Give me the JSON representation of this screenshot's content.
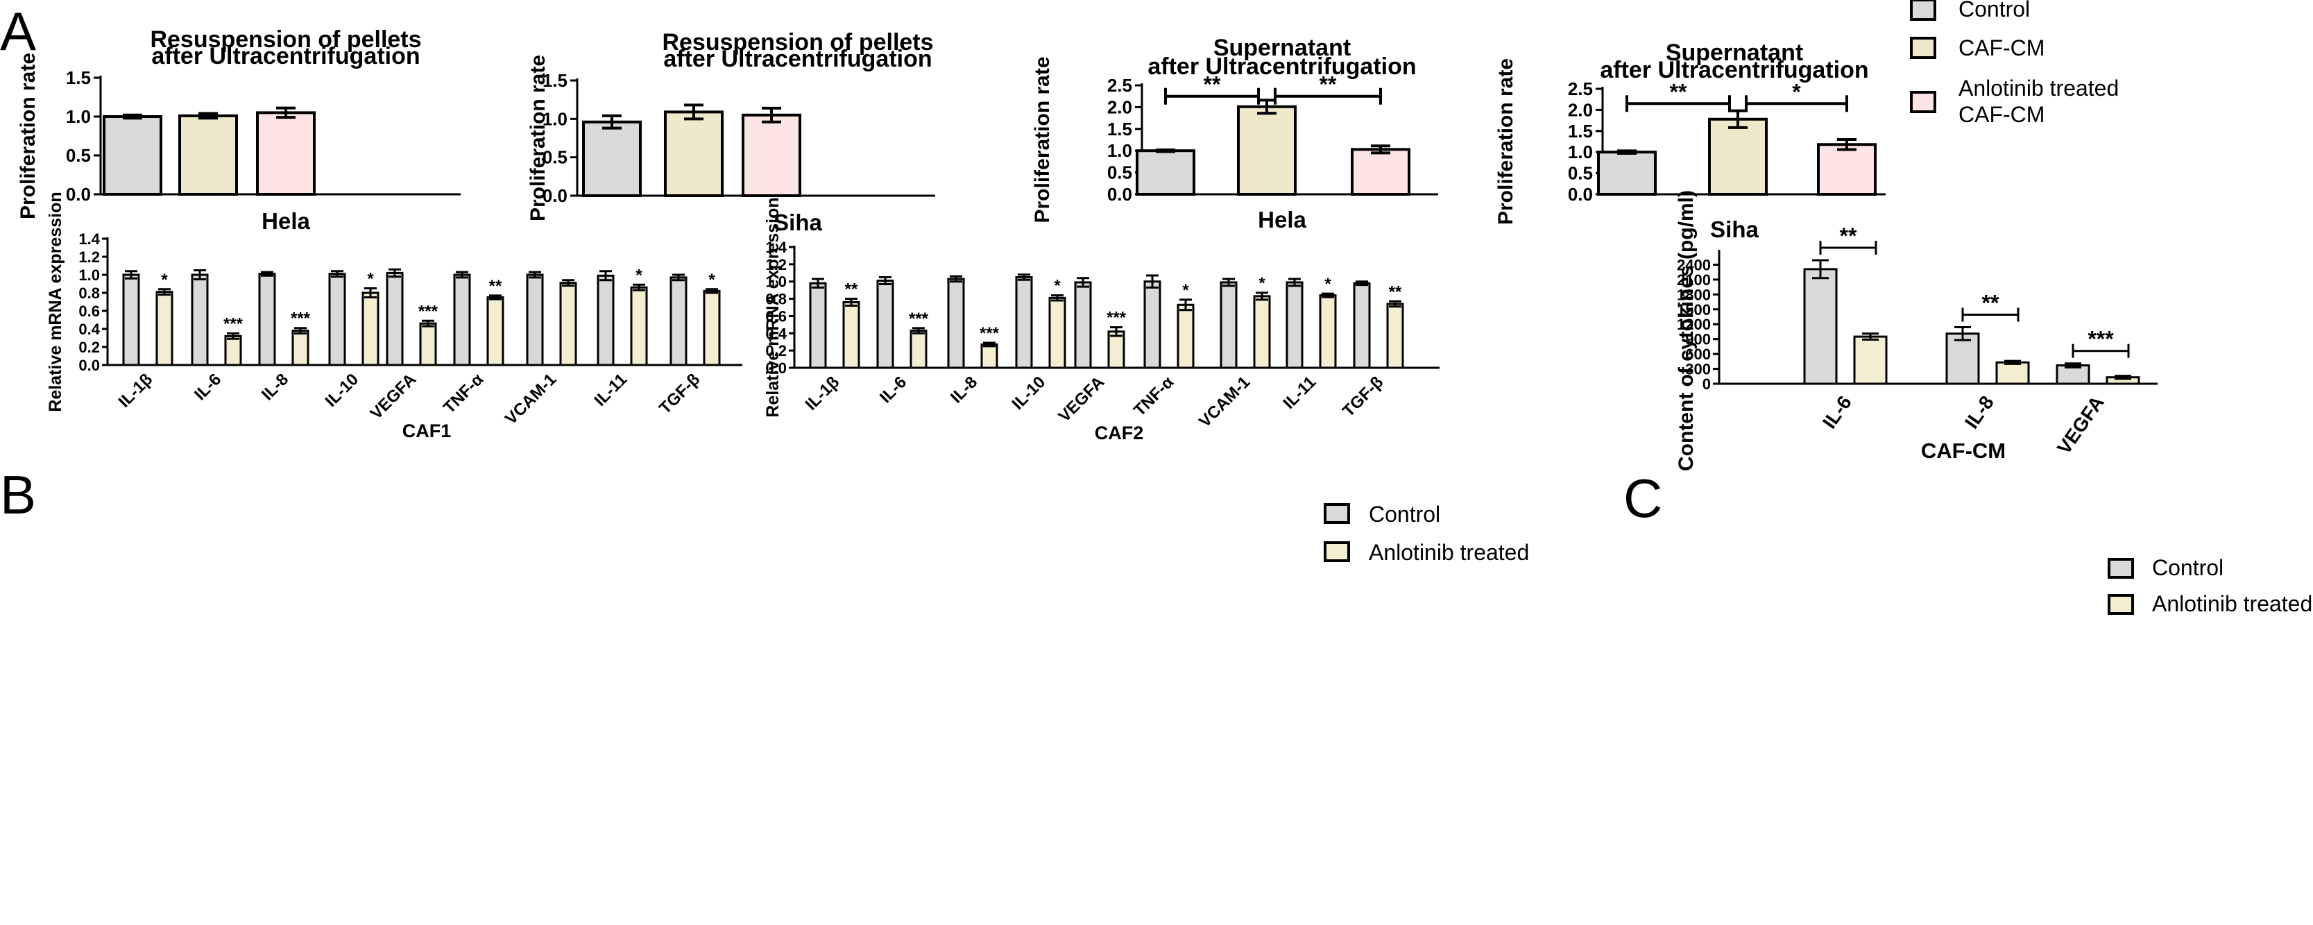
{
  "colors": {
    "control": "#d9d9d9",
    "caf_cm": "#efe9cc",
    "anlotinib_caf": "#fde4e4",
    "anlotinib": "#f3eed0",
    "stroke": "#000000"
  },
  "panel_labels": {
    "a": "A",
    "b": "B",
    "c": "C"
  },
  "legend_top": {
    "items": [
      {
        "label": "Control",
        "color": "#d9d9d9"
      },
      {
        "label": "CAF-CM",
        "color": "#efe9cc"
      },
      {
        "label": "Anlotinib treated",
        "label2": "CAF-CM",
        "color": "#fde4e4"
      }
    ]
  },
  "legend_b": {
    "items": [
      {
        "label": "Control",
        "color": "#d9d9d9"
      },
      {
        "label": "Anlotinib treated",
        "color": "#f3eed0"
      }
    ]
  },
  "legend_c": {
    "items": [
      {
        "label": "Control",
        "color": "#d9d9d9"
      },
      {
        "label": "Anlotinib treated",
        "color": "#f3eed0"
      }
    ]
  },
  "chart_data": [
    {
      "id": "A1",
      "type": "bar",
      "title": [
        "Resuspension of pellets",
        "after Ultracentrifugation"
      ],
      "ylabel": "Proliferation rate",
      "xlabel": "Hela",
      "categories": [
        "Control",
        "CAF-CM",
        "Anlotinib treated CAF-CM"
      ],
      "values": [
        1.0,
        1.01,
        1.05
      ],
      "errors": [
        0.02,
        0.03,
        0.06
      ],
      "ylim": [
        0,
        1.5
      ],
      "yticks": [
        0.0,
        0.5,
        1.0,
        1.5
      ],
      "ytick_labels": [
        "0.0",
        "0.5",
        "1.0",
        "1.5"
      ],
      "significance": []
    },
    {
      "id": "A2",
      "type": "bar",
      "title": [
        "Resuspension of pellets",
        "after Ultracentrifugation"
      ],
      "ylabel": "Proliferation rate",
      "xlabel": "Siha",
      "categories": [
        "Control",
        "CAF-CM",
        "Anlotinib treated CAF-CM"
      ],
      "values": [
        0.96,
        1.09,
        1.05
      ],
      "errors": [
        0.08,
        0.09,
        0.09
      ],
      "ylim": [
        0,
        1.5
      ],
      "yticks": [
        0.0,
        0.5,
        1.0,
        1.5
      ],
      "ytick_labels": [
        "0.0",
        "0.5",
        "1.0",
        "1.5"
      ],
      "significance": []
    },
    {
      "id": "A3",
      "type": "bar",
      "title": [
        "Supernatant",
        "after Ultracentrifugation"
      ],
      "ylabel": "Proliferation rate",
      "xlabel": "Hela",
      "categories": [
        "Control",
        "CAF-CM",
        "Anlotinib treated CAF-CM"
      ],
      "values": [
        1.0,
        2.01,
        1.03
      ],
      "errors": [
        0.02,
        0.15,
        0.08
      ],
      "ylim": [
        0,
        2.5
      ],
      "yticks": [
        0.0,
        0.5,
        1.0,
        1.5,
        2.0,
        2.5
      ],
      "ytick_labels": [
        "0.0",
        "0.5",
        "1.0",
        "1.5",
        "2.0",
        "2.5"
      ],
      "significance": [
        {
          "from": 0,
          "to": 1,
          "y": 2.25,
          "label": "**"
        },
        {
          "from": 1,
          "to": 2,
          "y": 2.25,
          "label": "**"
        }
      ]
    },
    {
      "id": "A4",
      "type": "bar",
      "title": [
        "Supernatant",
        "after Ultracentrifugation"
      ],
      "ylabel": "Proliferation rate",
      "xlabel": "Siha",
      "categories": [
        "Control",
        "CAF-CM",
        "Anlotinib treated CAF-CM"
      ],
      "values": [
        1.0,
        1.78,
        1.18
      ],
      "errors": [
        0.03,
        0.2,
        0.12
      ],
      "ylim": [
        0,
        2.5
      ],
      "yticks": [
        0.0,
        0.5,
        1.0,
        1.5,
        2.0,
        2.5
      ],
      "ytick_labels": [
        "0.0",
        "0.5",
        "1.0",
        "1.5",
        "2.0",
        "2.5"
      ],
      "significance": [
        {
          "from": 0,
          "to": 1,
          "y": 2.15,
          "label": "**"
        },
        {
          "from": 1,
          "to": 2,
          "y": 2.15,
          "label": "*"
        }
      ]
    },
    {
      "id": "B1",
      "type": "bar",
      "ylabel": "Relative mRNA expression",
      "xlabel": "CAF1",
      "categories": [
        "IL-1β",
        "IL-6",
        "IL-8",
        "IL-10",
        "VEGFA",
        "TNF-α",
        "VCAM-1",
        "IL-11",
        "TGF-β"
      ],
      "series": [
        {
          "name": "Control",
          "values": [
            1.0,
            1.0,
            1.01,
            1.01,
            1.02,
            1.0,
            1.0,
            0.99,
            0.97
          ],
          "errors": [
            0.04,
            0.05,
            0.02,
            0.03,
            0.04,
            0.03,
            0.03,
            0.05,
            0.03
          ]
        },
        {
          "name": "Anlotinib treated",
          "values": [
            0.81,
            0.32,
            0.38,
            0.8,
            0.46,
            0.75,
            0.91,
            0.86,
            0.82
          ],
          "errors": [
            0.03,
            0.03,
            0.03,
            0.05,
            0.03,
            0.02,
            0.03,
            0.03,
            0.02
          ]
        }
      ],
      "stars": [
        "*",
        "***",
        "***",
        "*",
        "***",
        "**",
        "",
        "*",
        "*"
      ],
      "ylim": [
        0,
        1.4
      ],
      "yticks": [
        0.0,
        0.2,
        0.4,
        0.6,
        0.8,
        1.0,
        1.2,
        1.4
      ],
      "ytick_labels": [
        "0.0",
        "0.2",
        "0.4",
        "0.6",
        "0.8",
        "1.0",
        "1.2",
        "1.4"
      ]
    },
    {
      "id": "B2",
      "type": "bar",
      "ylabel": "Relative mRNA expression",
      "xlabel": "CAF2",
      "categories": [
        "IL-1β",
        "IL-6",
        "IL-8",
        "IL-10",
        "VEGFA",
        "TNF-α",
        "VCAM-1",
        "IL-11",
        "TGF-β"
      ],
      "series": [
        {
          "name": "Control",
          "values": [
            0.98,
            1.01,
            1.03,
            1.05,
            0.99,
            1.0,
            0.99,
            0.99,
            0.98
          ],
          "errors": [
            0.05,
            0.04,
            0.03,
            0.03,
            0.05,
            0.07,
            0.04,
            0.04,
            0.02
          ]
        },
        {
          "name": "Anlotinib treated",
          "values": [
            0.76,
            0.43,
            0.27,
            0.81,
            0.42,
            0.73,
            0.83,
            0.84,
            0.74
          ],
          "errors": [
            0.04,
            0.03,
            0.02,
            0.03,
            0.05,
            0.06,
            0.04,
            0.02,
            0.03
          ]
        }
      ],
      "stars": [
        "**",
        "***",
        "***",
        "*",
        "***",
        "*",
        "*",
        "*",
        "**"
      ],
      "ylim": [
        0,
        1.4
      ],
      "yticks": [
        0.0,
        0.2,
        0.4,
        0.6,
        0.8,
        1.0,
        1.2,
        1.4
      ],
      "ytick_labels": [
        "0.0",
        "0.2",
        "0.4",
        "0.6",
        "0.8",
        "1.0",
        "1.2",
        "1.4"
      ]
    },
    {
      "id": "C",
      "type": "bar",
      "ylabel": "Content of cytokines (pg/ml)",
      "xlabel": "CAF-CM",
      "categories": [
        "IL-6",
        "IL-8",
        "VEGFA"
      ],
      "series": [
        {
          "name": "Control",
          "values": [
            2310,
            1010,
            370
          ],
          "errors": [
            180,
            130,
            40
          ]
        },
        {
          "name": "Anlotinib treated",
          "values": [
            950,
            430,
            130
          ],
          "errors": [
            60,
            30,
            30
          ]
        }
      ],
      "stars": [
        "**",
        "**",
        "***"
      ],
      "ylim": [
        0,
        2700
      ],
      "yticks": [
        0,
        300,
        600,
        900,
        1200,
        1500,
        1800,
        2100,
        2400
      ],
      "ytick_labels": [
        "0",
        "300",
        "600",
        "900",
        "1200",
        "1500",
        "1800",
        "2100",
        "2400"
      ]
    }
  ]
}
